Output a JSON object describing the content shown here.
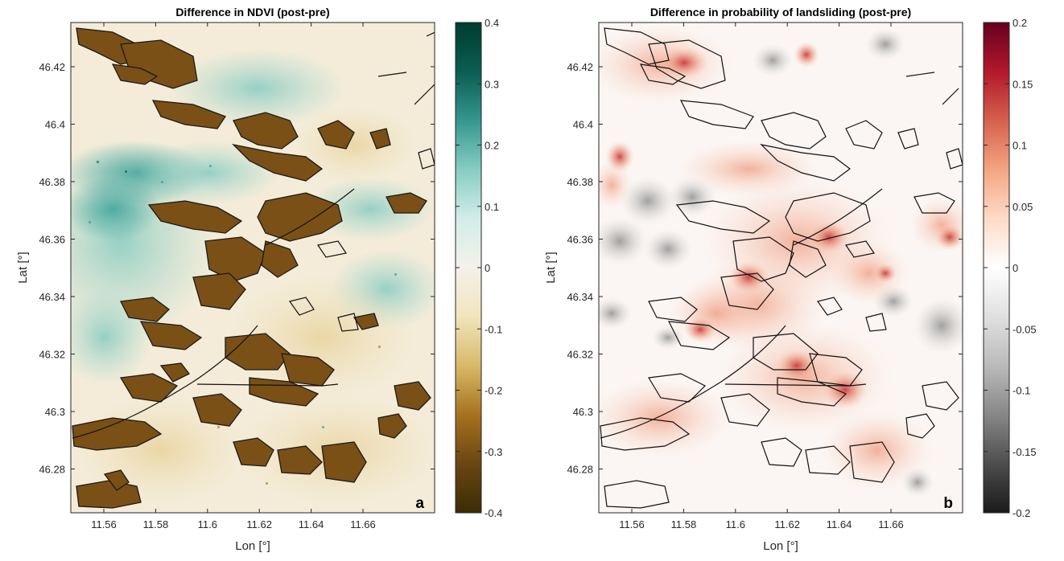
{
  "panels": [
    {
      "id": "a",
      "title": "Difference in NDVI (post-pre)",
      "panel_label": "a",
      "xlabel": "Lon [°]",
      "ylabel": "Lat [°]",
      "x_ticks": [
        "11.56",
        "11.58",
        "11.6",
        "11.62",
        "11.64",
        "11.66"
      ],
      "y_ticks": [
        "46.42",
        "46.4",
        "46.38",
        "46.36",
        "46.34",
        "46.32",
        "46.3",
        "46.28"
      ],
      "colorbar_ticks": [
        "0.4",
        "0.3",
        "0.2",
        "0.1",
        "0",
        "-0.1",
        "-0.2",
        "-0.3",
        "-0.4"
      ],
      "colormap": [
        "#3c2c06",
        "#6b4612",
        "#a7721f",
        "#d8b968",
        "#f1e4bd",
        "#f4f1ea",
        "#d3ede9",
        "#86cdc2",
        "#35978f",
        "#0b5d52",
        "#003c30"
      ]
    },
    {
      "id": "b",
      "title": "Difference in probability of landsliding (post-pre)",
      "panel_label": "b",
      "xlabel": "Lon [°]",
      "ylabel": "Lat [°]",
      "x_ticks": [
        "11.56",
        "11.58",
        "11.6",
        "11.62",
        "11.64",
        "11.66"
      ],
      "y_ticks": [
        "46.42",
        "46.4",
        "46.38",
        "46.36",
        "46.34",
        "46.32",
        "46.3",
        "46.28"
      ],
      "colorbar_ticks": [
        "0.2",
        "0.15",
        "0.1",
        "0.05",
        "0",
        "-0.05",
        "-0.1",
        "-0.15",
        "-0.2"
      ],
      "colormap": [
        "#1a1a1a",
        "#4d4d4d",
        "#878787",
        "#bababa",
        "#e0e0e0",
        "#ffffff",
        "#fddbc7",
        "#f4a582",
        "#d6604d",
        "#b2182b",
        "#67001f"
      ]
    }
  ]
}
